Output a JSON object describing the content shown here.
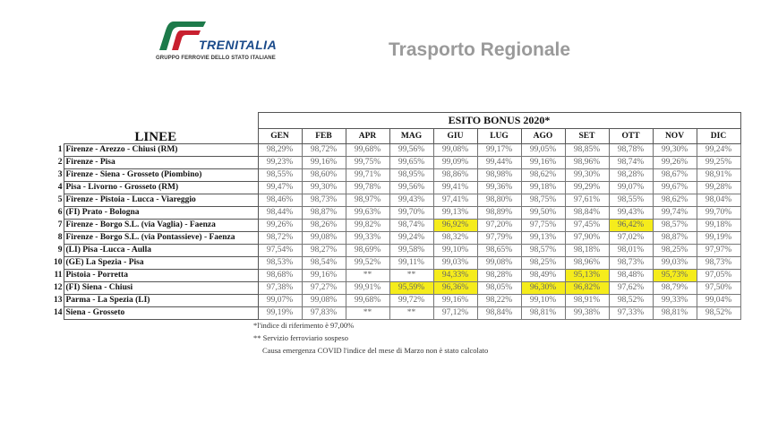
{
  "header": {
    "brand": "TRENITALIA",
    "brand_subtitle": "GRUPPO FERROVIE DELLO STATO ITALIANE",
    "title": "Trasporto Regionale",
    "logo_colors": {
      "green": "#1d7a4a",
      "red": "#c8202f"
    }
  },
  "table": {
    "lines_header": "LINEE",
    "group_header": "ESITO BONUS 2020*",
    "months": [
      "GEN",
      "FEB",
      "APR",
      "MAG",
      "GIU",
      "LUG",
      "AGO",
      "SET",
      "OTT",
      "NOV",
      "DIC"
    ],
    "highlight_color": "#f5ec1c",
    "rows": [
      {
        "n": "1",
        "name": "Firenze - Arezzo - Chiusi (RM)",
        "values": [
          "98,29%",
          "98,72%",
          "99,68%",
          "99,56%",
          "99,08%",
          "99,17%",
          "99,05%",
          "98,85%",
          "98,78%",
          "99,30%",
          "99,24%"
        ],
        "highlight": []
      },
      {
        "n": "2",
        "name": "Firenze - Pisa",
        "values": [
          "99,23%",
          "99,16%",
          "99,75%",
          "99,65%",
          "99,09%",
          "99,44%",
          "99,16%",
          "98,96%",
          "98,74%",
          "99,26%",
          "99,25%"
        ],
        "highlight": []
      },
      {
        "n": "3",
        "name": "Firenze - Siena - Grosseto (Piombino)",
        "values": [
          "98,55%",
          "98,60%",
          "99,71%",
          "98,95%",
          "98,86%",
          "98,98%",
          "98,62%",
          "99,30%",
          "98,28%",
          "98,67%",
          "98,91%"
        ],
        "highlight": []
      },
      {
        "n": "4",
        "name": "Pisa - Livorno - Grosseto (RM)",
        "values": [
          "99,47%",
          "99,30%",
          "99,78%",
          "99,56%",
          "99,41%",
          "99,36%",
          "99,18%",
          "99,29%",
          "99,07%",
          "99,67%",
          "99,28%"
        ],
        "highlight": []
      },
      {
        "n": "5",
        "name": "Firenze - Pistoia - Lucca - Viareggio",
        "values": [
          "98,46%",
          "98,73%",
          "98,97%",
          "99,43%",
          "97,41%",
          "98,80%",
          "98,75%",
          "97,61%",
          "98,55%",
          "98,62%",
          "98,04%"
        ],
        "highlight": []
      },
      {
        "n": "6",
        "name": "(FI) Prato - Bologna",
        "values": [
          "98,44%",
          "98,87%",
          "99,63%",
          "99,70%",
          "99,13%",
          "98,89%",
          "99,50%",
          "98,84%",
          "99,43%",
          "99,74%",
          "99,70%"
        ],
        "highlight": []
      },
      {
        "n": "7",
        "name": "Firenze - Borgo S.L. (via Vaglia) - Faenza",
        "values": [
          "99,26%",
          "98,26%",
          "99,82%",
          "98,74%",
          "96,92%",
          "97,20%",
          "97,75%",
          "97,45%",
          "96,42%",
          "98,57%",
          "99,18%"
        ],
        "highlight": [
          "GIU",
          "OTT"
        ]
      },
      {
        "n": "8",
        "name": "Firenze - Borgo S.L. (via Pontassieve) - Faenza",
        "values": [
          "98,72%",
          "99,08%",
          "99,33%",
          "99,24%",
          "98,32%",
          "97,79%",
          "99,13%",
          "97,90%",
          "97,02%",
          "98,87%",
          "99,19%"
        ],
        "highlight": []
      },
      {
        "n": "9",
        "name": "(LI) Pisa -Lucca - Aulla",
        "values": [
          "97,54%",
          "98,27%",
          "98,69%",
          "99,58%",
          "99,10%",
          "98,65%",
          "98,57%",
          "98,18%",
          "98,01%",
          "98,25%",
          "97,97%"
        ],
        "highlight": []
      },
      {
        "n": "10",
        "name": "(GE) La Spezia - Pisa",
        "values": [
          "98,53%",
          "98,54%",
          "99,52%",
          "99,11%",
          "99,03%",
          "99,08%",
          "98,25%",
          "98,96%",
          "98,73%",
          "99,03%",
          "98,73%"
        ],
        "highlight": []
      },
      {
        "n": "11",
        "name": "Pistoia - Porretta",
        "values": [
          "98,68%",
          "99,16%",
          "**",
          "**",
          "94,33%",
          "98,28%",
          "98,49%",
          "95,13%",
          "98,48%",
          "95,73%",
          "97,05%"
        ],
        "highlight": [
          "GIU",
          "SET",
          "NOV"
        ]
      },
      {
        "n": "12",
        "name": "(FI) Siena - Chiusi",
        "values": [
          "97,38%",
          "97,27%",
          "99,91%",
          "95,59%",
          "96,36%",
          "98,05%",
          "96,30%",
          "96,82%",
          "97,62%",
          "98,79%",
          "97,50%"
        ],
        "highlight": [
          "MAG",
          "GIU",
          "AGO",
          "SET"
        ]
      },
      {
        "n": "13",
        "name": "Parma - La Spezia (LI)",
        "values": [
          "99,07%",
          "99,08%",
          "99,68%",
          "99,72%",
          "99,16%",
          "98,22%",
          "99,10%",
          "98,91%",
          "98,52%",
          "99,33%",
          "99,04%"
        ],
        "highlight": []
      },
      {
        "n": "14",
        "name": "Siena - Grosseto",
        "values": [
          "99,19%",
          "97,83%",
          "**",
          "**",
          "97,12%",
          "98,84%",
          "98,81%",
          "99,38%",
          "97,33%",
          "98,81%",
          "98,52%"
        ],
        "highlight": []
      }
    ]
  },
  "notes": [
    "*l'indice di riferimento è 97,00%",
    "** Servizio ferroviario sospeso",
    "Causa emergenza COVID l'indice del mese di Marzo non è stato calcolato"
  ]
}
